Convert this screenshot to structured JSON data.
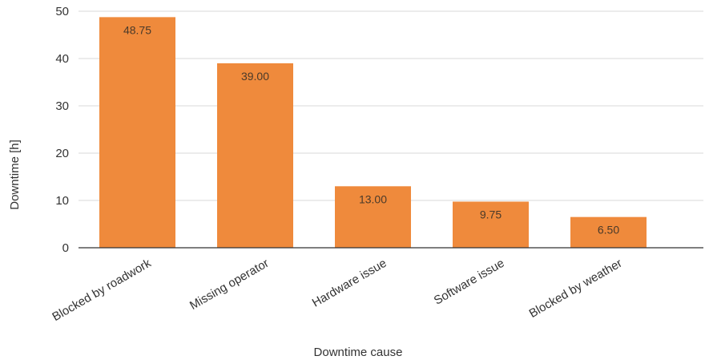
{
  "chart_data": {
    "type": "bar",
    "categories": [
      "Blocked by roadwork",
      "Missing operator",
      "Hardware issue",
      "Software issue",
      "Blocked by weather"
    ],
    "values": [
      48.75,
      39.0,
      13.0,
      9.75,
      6.5
    ],
    "data_labels": [
      "48.75",
      "39.00",
      "13.00",
      "9.75",
      "6.50"
    ],
    "xlabel": "Downtime cause",
    "ylabel": "Downtime [h]",
    "ylim": [
      0,
      50
    ],
    "yticks": [
      0,
      10,
      20,
      30,
      40,
      50
    ],
    "grid": true,
    "bar_color": "#ef8a3c"
  }
}
